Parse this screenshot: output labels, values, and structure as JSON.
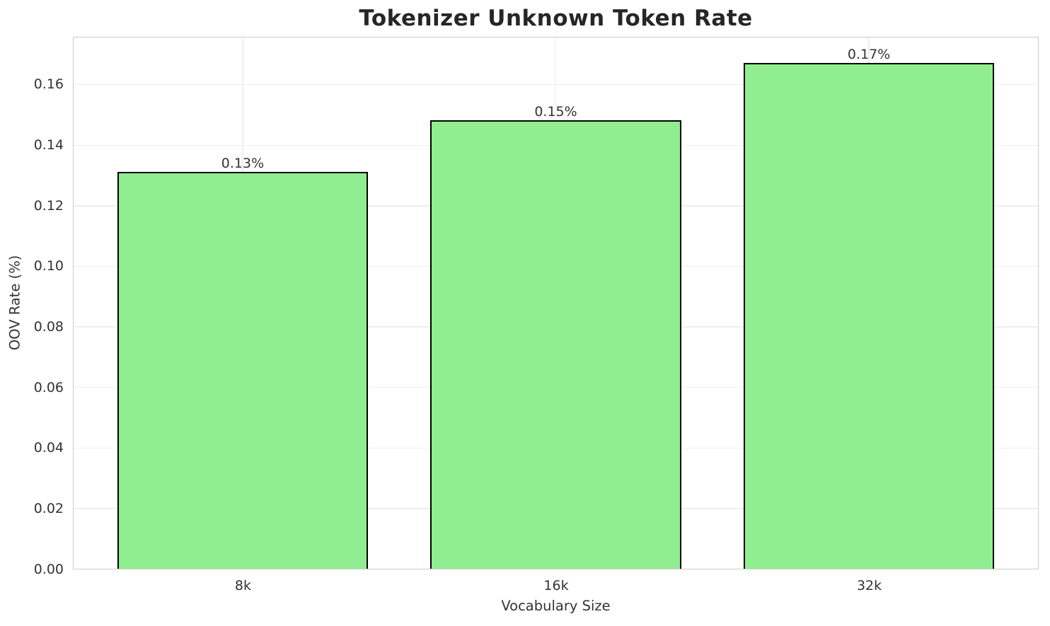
{
  "chart_data": {
    "type": "bar",
    "title": "Tokenizer Unknown Token Rate",
    "xlabel": "Vocabulary Size",
    "ylabel": "OOV Rate (%)",
    "categories": [
      "8k",
      "16k",
      "32k"
    ],
    "values": [
      0.131,
      0.148,
      0.167
    ],
    "bar_labels": [
      "0.13%",
      "0.15%",
      "0.17%"
    ],
    "yticks": [
      0.0,
      0.02,
      0.04,
      0.06,
      0.08,
      0.1,
      0.12,
      0.14,
      0.16
    ],
    "ytick_labels": [
      "0.00",
      "0.02",
      "0.04",
      "0.06",
      "0.08",
      "0.10",
      "0.12",
      "0.14",
      "0.16"
    ],
    "ylim": [
      0,
      0.1754
    ],
    "grid": true,
    "legend_position": "none",
    "bar_fill_color": "#90EE90",
    "bar_edge_color": "#000000",
    "grid_color": "#eeeeee",
    "spine_color": "#cccccc",
    "title_color": "#262626",
    "text_color": "#333333",
    "background_color": "#ffffff"
  }
}
